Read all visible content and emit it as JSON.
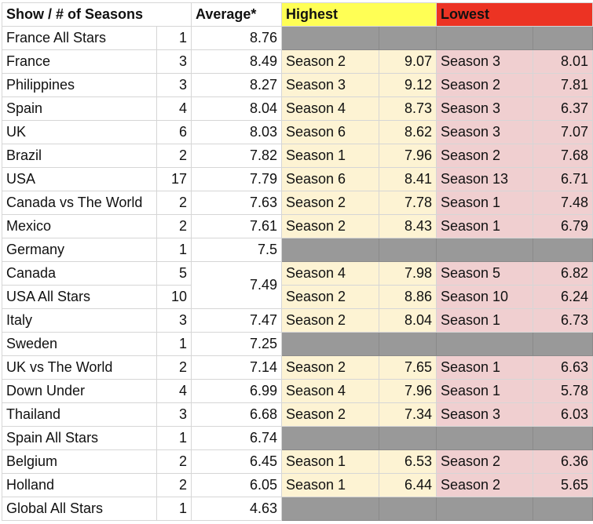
{
  "header": {
    "show": "Show / # of Seasons",
    "average": "Average*",
    "highest": "Highest",
    "lowest": "Lowest"
  },
  "colors": {
    "highest_header": "#ffff55",
    "lowest_header": "#ec3323",
    "highest_cell": "#fdf3d3",
    "lowest_cell": "#f0cfd0",
    "na_cell": "#999999"
  },
  "rows": [
    {
      "show": "France All Stars",
      "seasons": "1",
      "avg": "8.76",
      "hi_s": "",
      "hi_v": "",
      "lo_s": "",
      "lo_v": ""
    },
    {
      "show": "France",
      "seasons": "3",
      "avg": "8.49",
      "hi_s": "Season 2",
      "hi_v": "9.07",
      "lo_s": "Season 3",
      "lo_v": "8.01"
    },
    {
      "show": "Philippines",
      "seasons": "3",
      "avg": "8.27",
      "hi_s": "Season 3",
      "hi_v": "9.12",
      "lo_s": "Season 2",
      "lo_v": "7.81"
    },
    {
      "show": "Spain",
      "seasons": "4",
      "avg": "8.04",
      "hi_s": "Season 4",
      "hi_v": "8.73",
      "lo_s": "Season 3",
      "lo_v": "6.37"
    },
    {
      "show": "UK",
      "seasons": "6",
      "avg": "8.03",
      "hi_s": "Season 6",
      "hi_v": "8.62",
      "lo_s": "Season 3",
      "lo_v": "7.07"
    },
    {
      "show": "Brazil",
      "seasons": "2",
      "avg": "7.82",
      "hi_s": "Season 1",
      "hi_v": "7.96",
      "lo_s": "Season 2",
      "lo_v": "7.68"
    },
    {
      "show": "USA",
      "seasons": "17",
      "avg": "7.79",
      "hi_s": "Season 6",
      "hi_v": "8.41",
      "lo_s": "Season 13",
      "lo_v": "6.71"
    },
    {
      "show": "Canada vs The World",
      "seasons": "2",
      "avg": "7.63",
      "hi_s": "Season 2",
      "hi_v": "7.78",
      "lo_s": "Season 1",
      "lo_v": "7.48"
    },
    {
      "show": "Mexico",
      "seasons": "2",
      "avg": "7.61",
      "hi_s": "Season 2",
      "hi_v": "8.43",
      "lo_s": "Season 1",
      "lo_v": "6.79"
    },
    {
      "show": "Germany",
      "seasons": "1",
      "avg": "7.5",
      "hi_s": "",
      "hi_v": "",
      "lo_s": "",
      "lo_v": ""
    },
    {
      "show": "Canada",
      "seasons": "5",
      "avg": "7.49",
      "hi_s": "Season 4",
      "hi_v": "7.98",
      "lo_s": "Season 5",
      "lo_v": "6.82"
    },
    {
      "show": "USA All Stars",
      "seasons": "10",
      "avg": "",
      "hi_s": "Season 2",
      "hi_v": "8.86",
      "lo_s": "Season 10",
      "lo_v": "6.24"
    },
    {
      "show": "Italy",
      "seasons": "3",
      "avg": "7.47",
      "hi_s": "Season 2",
      "hi_v": "8.04",
      "lo_s": "Season 1",
      "lo_v": "6.73"
    },
    {
      "show": "Sweden",
      "seasons": "1",
      "avg": "7.25",
      "hi_s": "",
      "hi_v": "",
      "lo_s": "",
      "lo_v": ""
    },
    {
      "show": "UK vs The World",
      "seasons": "2",
      "avg": "7.14",
      "hi_s": "Season 2",
      "hi_v": "7.65",
      "lo_s": "Season 1",
      "lo_v": "6.63"
    },
    {
      "show": "Down Under",
      "seasons": "4",
      "avg": "6.99",
      "hi_s": "Season 4",
      "hi_v": "7.96",
      "lo_s": "Season 1",
      "lo_v": "5.78"
    },
    {
      "show": "Thailand",
      "seasons": "3",
      "avg": "6.68",
      "hi_s": "Season 2",
      "hi_v": "7.34",
      "lo_s": "Season 3",
      "lo_v": "6.03"
    },
    {
      "show": "Spain All Stars",
      "seasons": "1",
      "avg": "6.74",
      "hi_s": "",
      "hi_v": "",
      "lo_s": "",
      "lo_v": ""
    },
    {
      "show": "Belgium",
      "seasons": "2",
      "avg": "6.45",
      "hi_s": "Season 1",
      "hi_v": "6.53",
      "lo_s": "Season 2",
      "lo_v": "6.36"
    },
    {
      "show": "Holland",
      "seasons": "2",
      "avg": "6.05",
      "hi_s": "Season 1",
      "hi_v": "6.44",
      "lo_s": "Season 2",
      "lo_v": "5.65"
    },
    {
      "show": "Global All Stars",
      "seasons": "1",
      "avg": "4.63",
      "hi_s": "",
      "hi_v": "",
      "lo_s": "",
      "lo_v": ""
    }
  ]
}
